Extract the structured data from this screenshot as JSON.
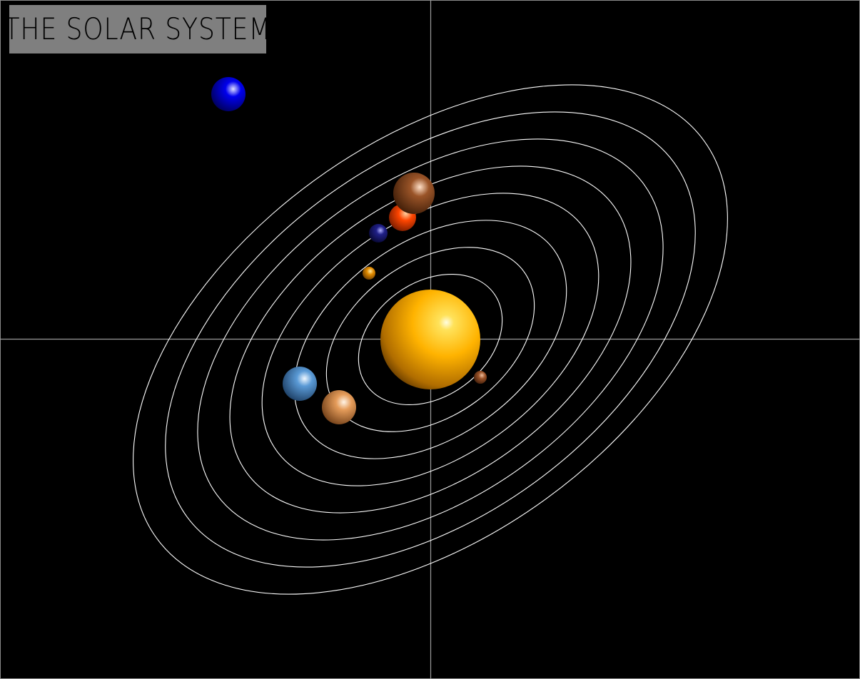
{
  "title": "THE SOLAR SYSTEM",
  "colors": {
    "background": "#000000",
    "orbit": "#ffffff",
    "axis": "#9a9a9a",
    "title_box": "#7f7f7f",
    "title_text": "#000000"
  },
  "bodies": [
    {
      "name": "sun",
      "color": "#ffb300"
    },
    {
      "name": "small-brown-planet",
      "color": "#8b4513"
    },
    {
      "name": "small-orange-planet",
      "color": "#e08a00"
    },
    {
      "name": "dark-blue-planet",
      "color": "#141473"
    },
    {
      "name": "red-orange-planet",
      "color": "#ff4500"
    },
    {
      "name": "brown-planet",
      "color": "#8b4a20"
    },
    {
      "name": "tan-planet",
      "color": "#e59c5a"
    },
    {
      "name": "light-blue-planet",
      "color": "#4f93d2"
    },
    {
      "name": "blue-planet",
      "color": "#0000ee"
    }
  ]
}
